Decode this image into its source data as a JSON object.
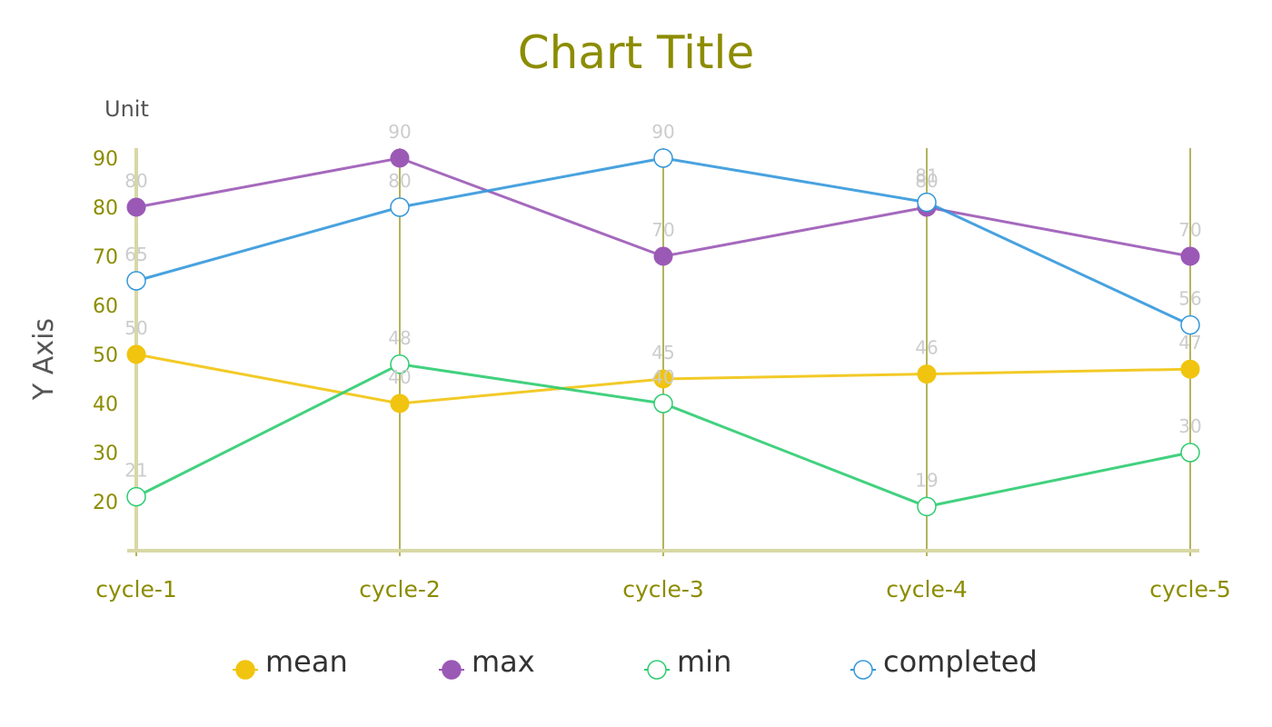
{
  "chart_data": {
    "type": "line",
    "title": "Chart Title",
    "unit_label": "Unit",
    "ylabel": "Y Axis",
    "xlabel": "",
    "categories": [
      "cycle-1",
      "cycle-2",
      "cycle-3",
      "cycle-4",
      "cycle-5"
    ],
    "ylim": [
      10,
      90
    ],
    "yticks": [
      20,
      30,
      40,
      50,
      60,
      70,
      80,
      90
    ],
    "grid": "vertical lines at categories",
    "legend": "bottom",
    "series": [
      {
        "name": "mean",
        "values": [
          50,
          40,
          45,
          46,
          47
        ],
        "color": "#f1c40f",
        "marker": "filled"
      },
      {
        "name": "max",
        "values": [
          80,
          90,
          70,
          80,
          70
        ],
        "color": "#9b59b6",
        "marker": "filled"
      },
      {
        "name": "min",
        "values": [
          21,
          48,
          40,
          19,
          30
        ],
        "color": "#2ecc71",
        "marker": "hollow"
      },
      {
        "name": "completed",
        "values": [
          65,
          80,
          90,
          81,
          56
        ],
        "color": "#3498db",
        "marker": "hollow"
      }
    ],
    "colors": {
      "axis": "#d8d8a6",
      "grid": "#9a9a2a",
      "tick_text": "#8c8c00",
      "data_label": "#cccccc"
    }
  }
}
